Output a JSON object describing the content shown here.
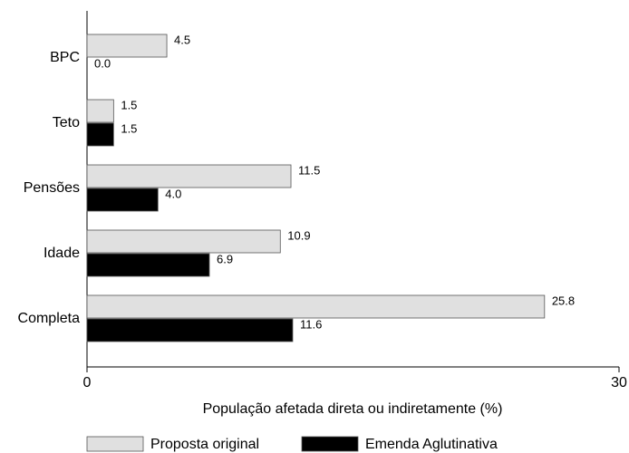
{
  "chart_data": {
    "type": "hbar",
    "categories": [
      "BPC",
      "Teto",
      "Pensões",
      "Idade",
      "Completa"
    ],
    "series": [
      {
        "name": "Proposta original",
        "color": "#e0e0e0",
        "values": [
          4.5,
          1.5,
          11.5,
          10.9,
          25.8
        ],
        "value_labels": [
          "4.5",
          "1.5",
          "11.5",
          "10.9",
          "25.8"
        ]
      },
      {
        "name": "Emenda Aglutinativa",
        "color": "#000000",
        "values": [
          0,
          1.5,
          4.0,
          6.9,
          11.6
        ],
        "value_labels": [
          "0.0",
          "1.5",
          "4.0",
          "6.9",
          "11.6"
        ]
      }
    ],
    "xlabel": "População afetada direta ou indiretamente (%)",
    "xlim": [
      0,
      30
    ],
    "xticks": [
      0,
      30
    ]
  }
}
